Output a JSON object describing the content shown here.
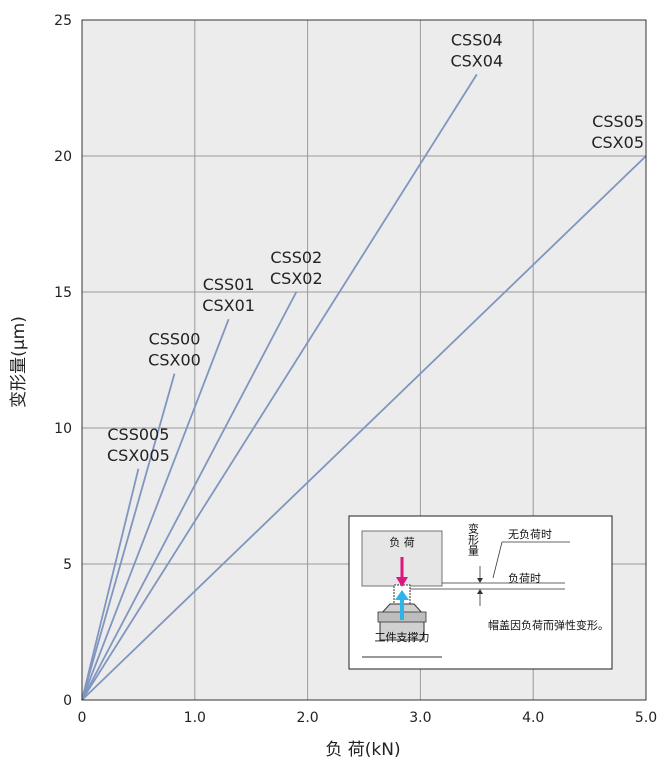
{
  "chart_data": {
    "type": "line",
    "xlabel": "负 荷(kN)",
    "ylabel": "变形量(μm)",
    "xlim": [
      0,
      5.0
    ],
    "ylim": [
      0,
      25
    ],
    "x_ticks": [
      "0",
      "1.0",
      "2.0",
      "3.0",
      "4.0",
      "5.0"
    ],
    "y_ticks": [
      "0",
      "5",
      "10",
      "15",
      "20",
      "25"
    ],
    "grid": true,
    "line_color": "#8096bf",
    "series": [
      {
        "name": "CSS005\nCSX005",
        "x": [
          0,
          0.5
        ],
        "y": [
          0,
          8.5
        ]
      },
      {
        "name": "CSS00\nCSX00",
        "x": [
          0,
          0.82
        ],
        "y": [
          0,
          12
        ]
      },
      {
        "name": "CSS01\nCSX01",
        "x": [
          0,
          1.3
        ],
        "y": [
          0,
          14
        ]
      },
      {
        "name": "CSS02\nCSX02",
        "x": [
          0,
          1.9
        ],
        "y": [
          0,
          15
        ]
      },
      {
        "name": "CSS04\nCSX04",
        "x": [
          0,
          3.5
        ],
        "y": [
          0,
          23
        ]
      },
      {
        "name": "CSS05\nCSX05",
        "x": [
          0,
          5.0
        ],
        "y": [
          0,
          20
        ]
      }
    ]
  },
  "inset": {
    "load_label": "负 荷",
    "support_label": "工件支撑力",
    "deform_label": "变形量",
    "no_load_label": "无负荷时",
    "loaded_label": "负荷时",
    "caption": "帽盖因负荷而弹性变形。",
    "load_arrow_color": "#e0147e",
    "support_arrow_color": "#2eb4e8"
  }
}
